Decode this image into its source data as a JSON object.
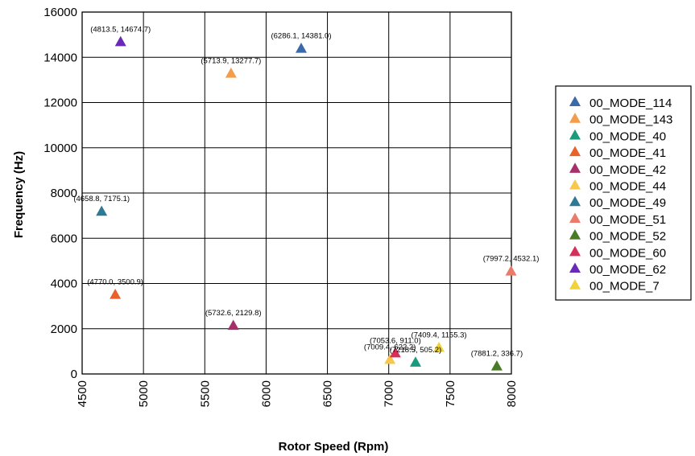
{
  "chart_data": {
    "type": "scatter",
    "xlabel": "Rotor Speed (Rpm)",
    "ylabel": "Frequency (Hz)",
    "xlim": [
      4500,
      8000
    ],
    "ylim": [
      0,
      16000
    ],
    "xticks": [
      4500,
      5000,
      5500,
      6000,
      6500,
      7000,
      7500,
      8000
    ],
    "yticks": [
      0,
      2000,
      4000,
      6000,
      8000,
      10000,
      12000,
      14000,
      16000
    ],
    "grid": true,
    "legend_position": "right",
    "marker": "triangle",
    "series": [
      {
        "name": "00_MODE_114",
        "color": "#3a6aa8",
        "points": [
          {
            "x": 6286.1,
            "y": 14381.0,
            "label": "(6286.1, 14381.0)"
          }
        ]
      },
      {
        "name": "00_MODE_143",
        "color": "#f39c4a",
        "points": [
          {
            "x": 5713.9,
            "y": 13277.7,
            "label": "(5713.9, 13277.7)"
          }
        ]
      },
      {
        "name": "00_MODE_40",
        "color": "#1a9a7e",
        "points": [
          {
            "x": 7218.5,
            "y": 505.2,
            "label": "(7218.5, 505.2)"
          }
        ]
      },
      {
        "name": "00_MODE_41",
        "color": "#e8622a",
        "points": [
          {
            "x": 4770.0,
            "y": 3500.9,
            "label": "(4770.0, 3500.9)"
          }
        ]
      },
      {
        "name": "00_MODE_42",
        "color": "#a8306a",
        "points": [
          {
            "x": 5732.6,
            "y": 2129.8,
            "label": "(5732.6, 2129.8)"
          }
        ]
      },
      {
        "name": "00_MODE_44",
        "color": "#f7c74e",
        "points": [
          {
            "x": 7009.4,
            "y": 622.2,
            "label": "(7009.4, 622.2)"
          }
        ]
      },
      {
        "name": "00_MODE_49",
        "color": "#2e7a94",
        "points": [
          {
            "x": 4658.8,
            "y": 7175.1,
            "label": "(4658.8, 7175.1)"
          }
        ]
      },
      {
        "name": "00_MODE_51",
        "color": "#ea7a6a",
        "points": [
          {
            "x": 7997.2,
            "y": 4532.1,
            "label": "(7997.2, 4532.1)"
          }
        ]
      },
      {
        "name": "00_MODE_52",
        "color": "#4a7a25",
        "points": [
          {
            "x": 7881.2,
            "y": 336.7,
            "label": "(7881.2, 336.7)"
          }
        ]
      },
      {
        "name": "00_MODE_60",
        "color": "#d6305a",
        "points": [
          {
            "x": 7053.6,
            "y": 911.0,
            "label": "(7053.6, 911.0)"
          }
        ]
      },
      {
        "name": "00_MODE_62",
        "color": "#6a2ab8",
        "points": [
          {
            "x": 4813.5,
            "y": 14674.7,
            "label": "(4813.5, 14674.7)"
          }
        ]
      },
      {
        "name": "00_MODE_7",
        "color": "#f0d23a",
        "points": [
          {
            "x": 7409.4,
            "y": 1155.3,
            "label": "(7409.4, 1155.3)"
          }
        ]
      }
    ]
  }
}
